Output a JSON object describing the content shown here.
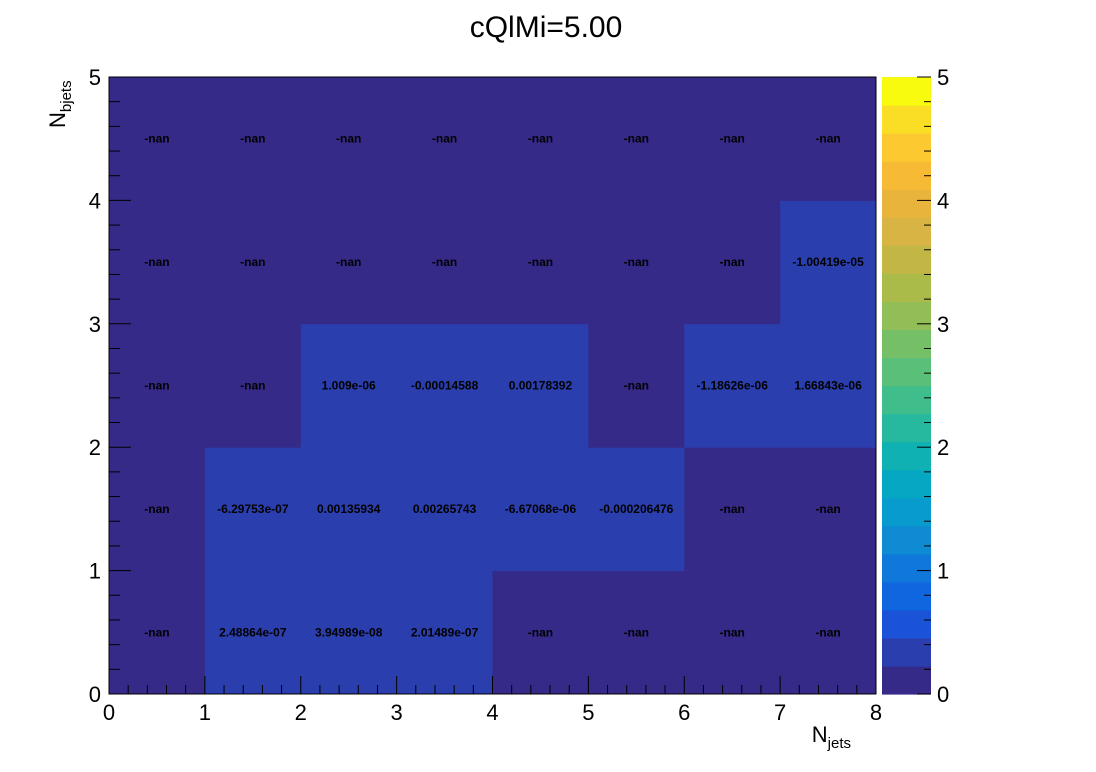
{
  "chart_data": {
    "type": "heatmap",
    "title": "cQlMi=5.00",
    "xlabel": {
      "main": "N",
      "sub": "jets"
    },
    "ylabel": {
      "main": "N",
      "sub": "bjets"
    },
    "xlim": [
      0,
      8
    ],
    "ylim": [
      0,
      5
    ],
    "x_ticks": [
      "0",
      "1",
      "2",
      "3",
      "4",
      "5",
      "6",
      "7",
      "8"
    ],
    "y_ticks": [
      "0",
      "1",
      "2",
      "3",
      "4",
      "5"
    ],
    "colorbar": {
      "range": [
        0,
        5
      ],
      "ticks": [
        "0",
        "1",
        "2",
        "3",
        "4",
        "5"
      ],
      "palette": [
        "#352a87",
        "#2a3eae",
        "#1a52d8",
        "#1066df",
        "#0f78da",
        "#0e8bd3",
        "#089bcd",
        "#06a7c2",
        "#10b1b2",
        "#26b9a0",
        "#3fbe8c",
        "#5ac079",
        "#75c066",
        "#91be56",
        "#abbb4a",
        "#c2b745",
        "#d7b443",
        "#e8b43c",
        "#f7ba35",
        "#fcc930",
        "#fade25",
        "#f9fb0e"
      ]
    },
    "colors": {
      "nan_cell": "#352a87",
      "value_cell": "#2b3eae"
    },
    "cells": [
      {
        "x": 0,
        "y": 0,
        "label": "-nan"
      },
      {
        "x": 1,
        "y": 0,
        "value": 2.48864e-07,
        "label": "2.48864e-07"
      },
      {
        "x": 2,
        "y": 0,
        "value": 3.94989e-08,
        "label": "3.94989e-08"
      },
      {
        "x": 3,
        "y": 0,
        "value": 2.01489e-07,
        "label": "2.01489e-07"
      },
      {
        "x": 4,
        "y": 0,
        "label": "-nan"
      },
      {
        "x": 5,
        "y": 0,
        "label": "-nan"
      },
      {
        "x": 6,
        "y": 0,
        "label": "-nan"
      },
      {
        "x": 7,
        "y": 0,
        "label": "-nan"
      },
      {
        "x": 0,
        "y": 1,
        "label": "-nan"
      },
      {
        "x": 1,
        "y": 1,
        "value": -6.29753e-07,
        "label": "-6.29753e-07"
      },
      {
        "x": 2,
        "y": 1,
        "value": 0.00135934,
        "label": "0.00135934"
      },
      {
        "x": 3,
        "y": 1,
        "value": 0.00265743,
        "label": "0.00265743"
      },
      {
        "x": 4,
        "y": 1,
        "value": -6.67068e-06,
        "label": "-6.67068e-06"
      },
      {
        "x": 5,
        "y": 1,
        "value": -0.000206476,
        "label": "-0.000206476"
      },
      {
        "x": 6,
        "y": 1,
        "label": "-nan"
      },
      {
        "x": 7,
        "y": 1,
        "label": "-nan"
      },
      {
        "x": 0,
        "y": 2,
        "label": "-nan"
      },
      {
        "x": 1,
        "y": 2,
        "label": "-nan"
      },
      {
        "x": 2,
        "y": 2,
        "value": 1.009e-06,
        "label": "1.009e-06"
      },
      {
        "x": 3,
        "y": 2,
        "value": -0.00014588,
        "label": "-0.00014588"
      },
      {
        "x": 4,
        "y": 2,
        "value": 0.00178392,
        "label": "0.00178392"
      },
      {
        "x": 5,
        "y": 2,
        "label": "-nan"
      },
      {
        "x": 6,
        "y": 2,
        "value": -1.18626e-06,
        "label": "-1.18626e-06"
      },
      {
        "x": 7,
        "y": 2,
        "value": 1.66843e-06,
        "label": "1.66843e-06"
      },
      {
        "x": 0,
        "y": 3,
        "label": "-nan"
      },
      {
        "x": 1,
        "y": 3,
        "label": "-nan"
      },
      {
        "x": 2,
        "y": 3,
        "label": "-nan"
      },
      {
        "x": 3,
        "y": 3,
        "label": "-nan"
      },
      {
        "x": 4,
        "y": 3,
        "label": "-nan"
      },
      {
        "x": 5,
        "y": 3,
        "label": "-nan"
      },
      {
        "x": 6,
        "y": 3,
        "label": "-nan"
      },
      {
        "x": 7,
        "y": 3,
        "value": -1.00419e-05,
        "label": "-1.00419e-05"
      },
      {
        "x": 0,
        "y": 4,
        "label": "-nan"
      },
      {
        "x": 1,
        "y": 4,
        "label": "-nan"
      },
      {
        "x": 2,
        "y": 4,
        "label": "-nan"
      },
      {
        "x": 3,
        "y": 4,
        "label": "-nan"
      },
      {
        "x": 4,
        "y": 4,
        "label": "-nan"
      },
      {
        "x": 5,
        "y": 4,
        "label": "-nan"
      },
      {
        "x": 6,
        "y": 4,
        "label": "-nan"
      },
      {
        "x": 7,
        "y": 4,
        "label": "-nan"
      }
    ]
  }
}
